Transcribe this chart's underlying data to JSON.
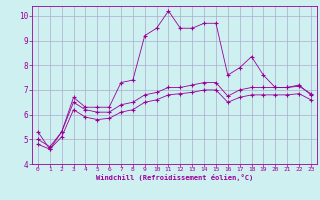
{
  "title": "",
  "xlabel": "Windchill (Refroidissement éolien,°C)",
  "ylabel": "",
  "background_color": "#cff0f0",
  "line_color": "#990099",
  "grid_color": "#aaaacc",
  "xlim": [
    -0.5,
    23.5
  ],
  "ylim": [
    4,
    10.4
  ],
  "xticks": [
    0,
    1,
    2,
    3,
    4,
    5,
    6,
    7,
    8,
    9,
    10,
    11,
    12,
    13,
    14,
    15,
    16,
    17,
    18,
    19,
    20,
    21,
    22,
    23
  ],
  "yticks": [
    4,
    5,
    6,
    7,
    8,
    9,
    10
  ],
  "series1_x": [
    0,
    1,
    2,
    3,
    4,
    5,
    6,
    7,
    8,
    9,
    10,
    11,
    12,
    13,
    14,
    15,
    16,
    17,
    18,
    19,
    20,
    21,
    22,
    23
  ],
  "series1_y": [
    5.3,
    4.6,
    5.3,
    6.7,
    6.3,
    6.3,
    6.3,
    7.3,
    7.4,
    9.2,
    9.5,
    10.2,
    9.5,
    9.5,
    9.7,
    9.7,
    7.6,
    7.9,
    8.35,
    7.6,
    7.1,
    7.1,
    7.2,
    6.8
  ],
  "series2_x": [
    0,
    1,
    2,
    3,
    4,
    5,
    6,
    7,
    8,
    9,
    10,
    11,
    12,
    13,
    14,
    15,
    16,
    17,
    18,
    19,
    20,
    21,
    22,
    23
  ],
  "series2_y": [
    5.0,
    4.7,
    5.3,
    6.5,
    6.2,
    6.1,
    6.1,
    6.4,
    6.5,
    6.8,
    6.9,
    7.1,
    7.1,
    7.2,
    7.3,
    7.3,
    6.75,
    7.0,
    7.1,
    7.1,
    7.1,
    7.1,
    7.15,
    6.85
  ],
  "series3_x": [
    0,
    1,
    2,
    3,
    4,
    5,
    6,
    7,
    8,
    9,
    10,
    11,
    12,
    13,
    14,
    15,
    16,
    17,
    18,
    19,
    20,
    21,
    22,
    23
  ],
  "series3_y": [
    4.8,
    4.6,
    5.1,
    6.2,
    5.9,
    5.8,
    5.85,
    6.1,
    6.2,
    6.5,
    6.6,
    6.8,
    6.85,
    6.9,
    7.0,
    7.0,
    6.5,
    6.7,
    6.8,
    6.8,
    6.8,
    6.8,
    6.85,
    6.6
  ]
}
